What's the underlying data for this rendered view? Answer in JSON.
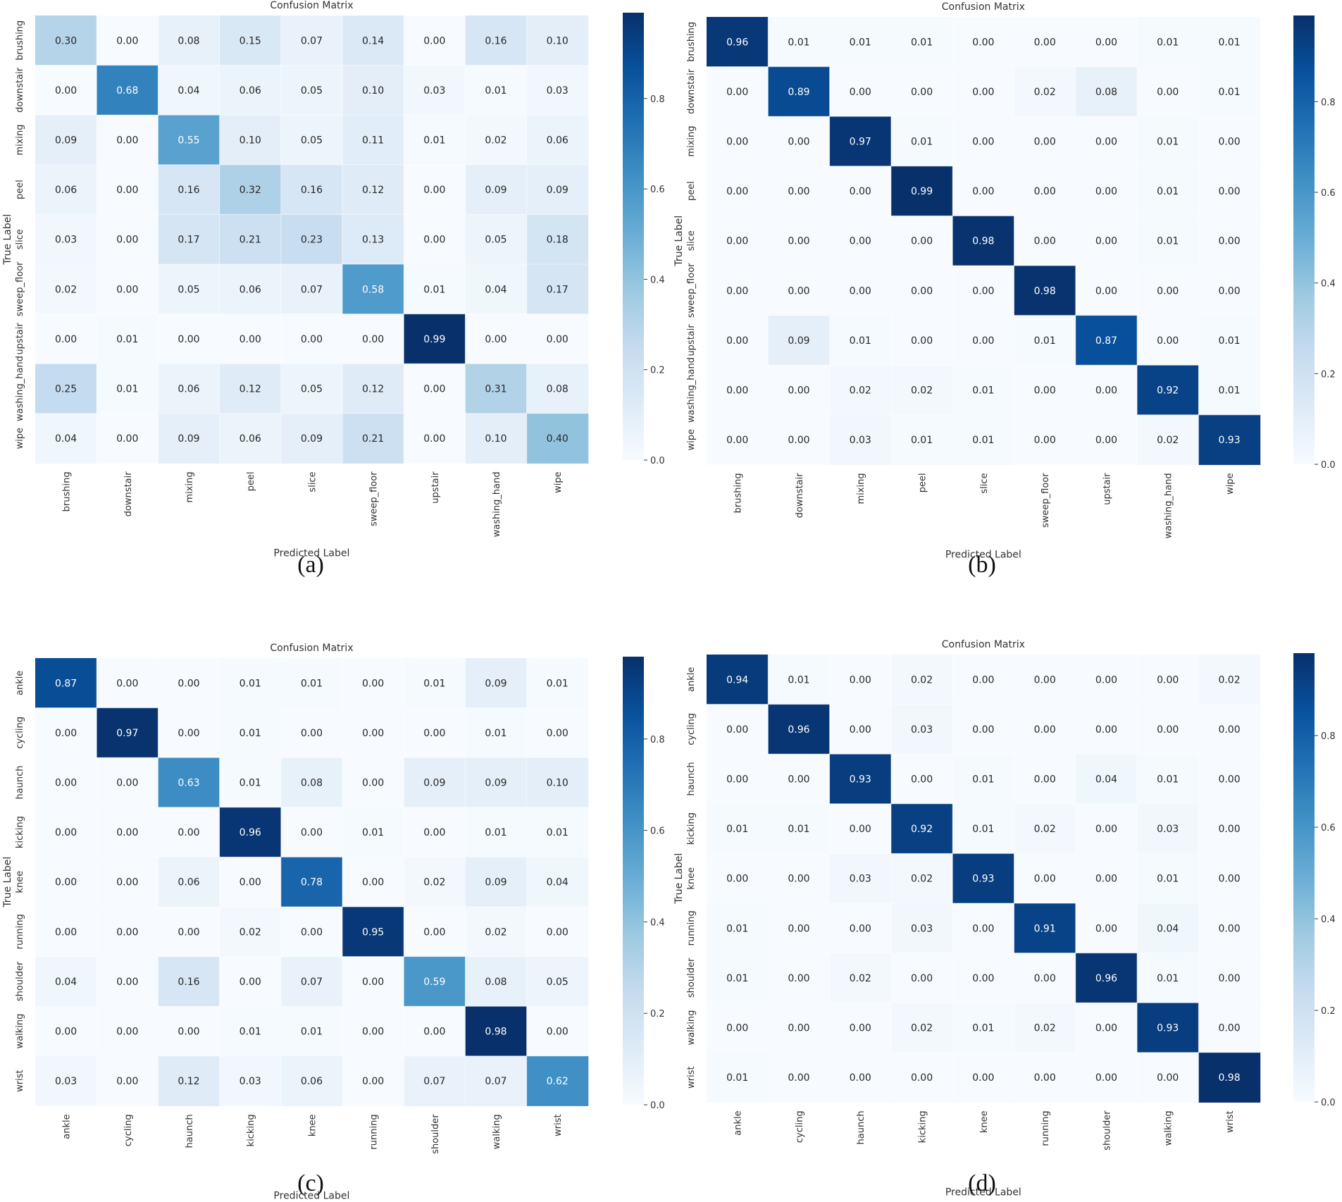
{
  "chart_data": [
    {
      "type": "heatmap",
      "panel": "(a)",
      "title": "Confusion Matrix",
      "xlabel": "Predicted Label",
      "ylabel": "True Label",
      "labels": [
        "brushing",
        "downstair",
        "mixing",
        "peel",
        "slice",
        "sweep_floor",
        "upstair",
        "washing_hand",
        "wipe"
      ],
      "values": [
        [
          0.3,
          0.0,
          0.08,
          0.15,
          0.07,
          0.14,
          0.0,
          0.16,
          0.1
        ],
        [
          0.0,
          0.68,
          0.04,
          0.06,
          0.05,
          0.1,
          0.03,
          0.01,
          0.03
        ],
        [
          0.09,
          0.0,
          0.55,
          0.1,
          0.05,
          0.11,
          0.01,
          0.02,
          0.06
        ],
        [
          0.06,
          0.0,
          0.16,
          0.32,
          0.16,
          0.12,
          0.0,
          0.09,
          0.09
        ],
        [
          0.03,
          0.0,
          0.17,
          0.21,
          0.23,
          0.13,
          0.0,
          0.05,
          0.18
        ],
        [
          0.02,
          0.0,
          0.05,
          0.06,
          0.07,
          0.58,
          0.01,
          0.04,
          0.17
        ],
        [
          0.0,
          0.01,
          0.0,
          0.0,
          0.0,
          0.0,
          0.99,
          0.0,
          0.0
        ],
        [
          0.25,
          0.01,
          0.06,
          0.12,
          0.05,
          0.12,
          0.0,
          0.31,
          0.08
        ],
        [
          0.04,
          0.0,
          0.09,
          0.06,
          0.09,
          0.21,
          0.0,
          0.1,
          0.4
        ]
      ],
      "colorbar_ticks": [
        "0.0",
        "0.2",
        "0.4",
        "0.6",
        "0.8"
      ],
      "vmin": 0.0,
      "vmax": 0.99,
      "colormap": "Blues"
    },
    {
      "type": "heatmap",
      "panel": "(b)",
      "title": "Confusion Matrix",
      "xlabel": "Predicted Label",
      "ylabel": "True Label",
      "labels": [
        "brushing",
        "downstair",
        "mixing",
        "peel",
        "slice",
        "sweep_floor",
        "upstair",
        "washing_hand",
        "wipe"
      ],
      "values": [
        [
          0.96,
          0.01,
          0.01,
          0.01,
          0.0,
          0.0,
          0.0,
          0.01,
          0.01
        ],
        [
          0.0,
          0.89,
          0.0,
          0.0,
          0.0,
          0.02,
          0.08,
          0.0,
          0.01
        ],
        [
          0.0,
          0.0,
          0.97,
          0.01,
          0.0,
          0.0,
          0.0,
          0.01,
          0.0
        ],
        [
          0.0,
          0.0,
          0.0,
          0.99,
          0.0,
          0.0,
          0.0,
          0.01,
          0.0
        ],
        [
          0.0,
          0.0,
          0.0,
          0.0,
          0.98,
          0.0,
          0.0,
          0.01,
          0.0
        ],
        [
          0.0,
          0.0,
          0.0,
          0.0,
          0.0,
          0.98,
          0.0,
          0.0,
          0.0
        ],
        [
          0.0,
          0.09,
          0.01,
          0.0,
          0.0,
          0.01,
          0.87,
          0.0,
          0.01
        ],
        [
          0.0,
          0.0,
          0.02,
          0.02,
          0.01,
          0.0,
          0.0,
          0.92,
          0.01
        ],
        [
          0.0,
          0.0,
          0.03,
          0.01,
          0.01,
          0.0,
          0.0,
          0.02,
          0.93
        ]
      ],
      "colorbar_ticks": [
        "0.0",
        "0.2",
        "0.4",
        "0.6",
        "0.8"
      ],
      "vmin": 0.0,
      "vmax": 0.99,
      "colormap": "Blues"
    },
    {
      "type": "heatmap",
      "panel": "(c)",
      "title": "Confusion Matrix",
      "xlabel": "Predicted Label",
      "ylabel": "True Label",
      "labels": [
        "ankle",
        "cycling",
        "haunch",
        "kicking",
        "knee",
        "running",
        "shoulder",
        "walking",
        "wrist"
      ],
      "values": [
        [
          0.87,
          0.0,
          0.0,
          0.01,
          0.01,
          0.0,
          0.01,
          0.09,
          0.01
        ],
        [
          0.0,
          0.97,
          0.0,
          0.01,
          0.0,
          0.0,
          0.0,
          0.01,
          0.0
        ],
        [
          0.0,
          0.0,
          0.63,
          0.01,
          0.08,
          0.0,
          0.09,
          0.09,
          0.1
        ],
        [
          0.0,
          0.0,
          0.0,
          0.96,
          0.0,
          0.01,
          0.0,
          0.01,
          0.01
        ],
        [
          0.0,
          0.0,
          0.06,
          0.0,
          0.78,
          0.0,
          0.02,
          0.09,
          0.04
        ],
        [
          0.0,
          0.0,
          0.0,
          0.02,
          0.0,
          0.95,
          0.0,
          0.02,
          0.0
        ],
        [
          0.04,
          0.0,
          0.16,
          0.0,
          0.07,
          0.0,
          0.59,
          0.08,
          0.05
        ],
        [
          0.0,
          0.0,
          0.0,
          0.01,
          0.01,
          0.0,
          0.0,
          0.98,
          0.0
        ],
        [
          0.03,
          0.0,
          0.12,
          0.03,
          0.06,
          0.0,
          0.07,
          0.07,
          0.62
        ]
      ],
      "colorbar_ticks": [
        "0.0",
        "0.2",
        "0.4",
        "0.6",
        "0.8"
      ],
      "vmin": 0.0,
      "vmax": 0.98,
      "colormap": "Blues"
    },
    {
      "type": "heatmap",
      "panel": "(d)",
      "title": "Confusion Matrix",
      "xlabel": "Predicted Label",
      "ylabel": "True Label",
      "labels": [
        "ankle",
        "cycling",
        "haunch",
        "kicking",
        "knee",
        "running",
        "shoulder",
        "walking",
        "wrist"
      ],
      "values": [
        [
          0.94,
          0.01,
          0.0,
          0.02,
          0.0,
          0.0,
          0.0,
          0.0,
          0.02
        ],
        [
          0.0,
          0.96,
          0.0,
          0.03,
          0.0,
          0.0,
          0.0,
          0.0,
          0.0
        ],
        [
          0.0,
          0.0,
          0.93,
          0.0,
          0.01,
          0.0,
          0.04,
          0.01,
          0.0
        ],
        [
          0.01,
          0.01,
          0.0,
          0.92,
          0.01,
          0.02,
          0.0,
          0.03,
          0.0
        ],
        [
          0.0,
          0.0,
          0.03,
          0.02,
          0.93,
          0.0,
          0.0,
          0.01,
          0.0
        ],
        [
          0.01,
          0.0,
          0.0,
          0.03,
          0.0,
          0.91,
          0.0,
          0.04,
          0.0
        ],
        [
          0.01,
          0.0,
          0.02,
          0.0,
          0.0,
          0.0,
          0.96,
          0.01,
          0.0
        ],
        [
          0.0,
          0.0,
          0.0,
          0.02,
          0.01,
          0.02,
          0.0,
          0.93,
          0.0
        ],
        [
          0.01,
          0.0,
          0.0,
          0.0,
          0.0,
          0.0,
          0.0,
          0.0,
          0.98
        ]
      ],
      "colorbar_ticks": [
        "0.0",
        "0.2",
        "0.4",
        "0.6",
        "0.8"
      ],
      "vmin": 0.0,
      "vmax": 0.98,
      "colormap": "Blues"
    }
  ]
}
